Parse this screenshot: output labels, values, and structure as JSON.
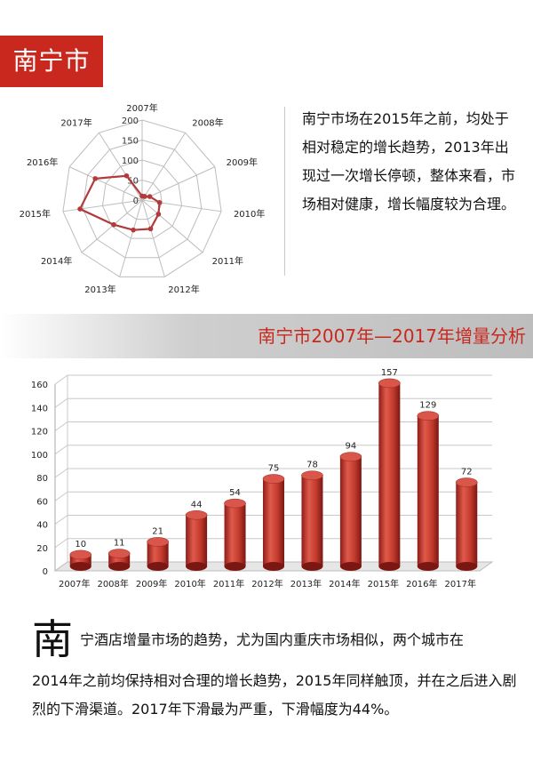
{
  "header": {
    "city_label": "南宁市"
  },
  "intro_text": "南宁市场在2015年之前，均处于相对稳定的增长趋势，2013年出现过一次增长停顿，整体来看，市场相对健康，增长幅度较为合理。",
  "section_title": "南宁市2007年—2017年增量分析",
  "closing": {
    "big_char": "南",
    "first_line": "宁酒店增量市场的趋势，尤为国内重庆市场相似，两个城市在",
    "rest": "2014年之前均保持相对合理的增长趋势，2015年同样触顶，并在之后进入剧烈的下滑渠道。2017年下滑最为严重，下滑幅度为44%。"
  },
  "colors": {
    "accent": "#c8281e",
    "bar": "#c0392b",
    "radar_line": "#b23a3a"
  },
  "chart_data": [
    {
      "type": "radar",
      "categories": [
        "2007年",
        "2008年",
        "2009年",
        "2010年",
        "2011年",
        "2012年",
        "2013年",
        "2014年",
        "2015年",
        "2016年",
        "2017年"
      ],
      "values": [
        10,
        11,
        21,
        44,
        54,
        75,
        78,
        94,
        157,
        129,
        72
      ],
      "axis_ticks": [
        0,
        50,
        100,
        150,
        200
      ],
      "rmax": 200
    },
    {
      "type": "bar",
      "categories": [
        "2007年",
        "2008年",
        "2009年",
        "2010年",
        "2011年",
        "2012年",
        "2013年",
        "2014年",
        "2015年",
        "2016年",
        "2017年"
      ],
      "values": [
        10,
        11,
        21,
        44,
        54,
        75,
        78,
        94,
        157,
        129,
        72
      ],
      "y_ticks": [
        0,
        20,
        40,
        60,
        80,
        100,
        120,
        140,
        160
      ],
      "ylim": [
        0,
        160
      ],
      "grid": true
    }
  ]
}
